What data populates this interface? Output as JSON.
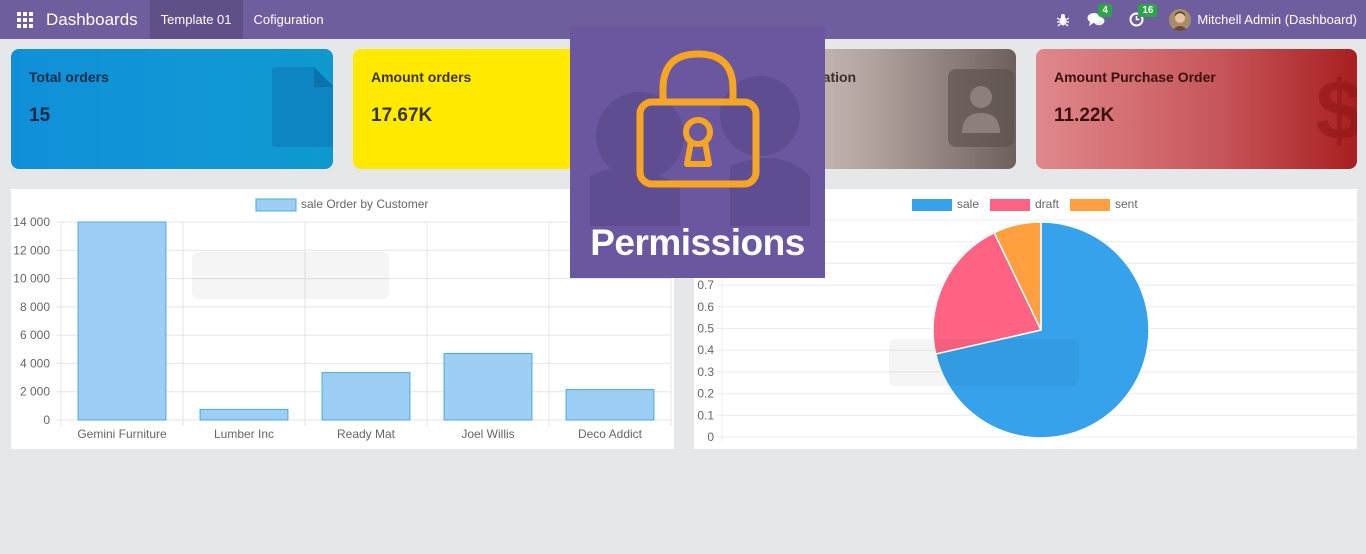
{
  "navbar": {
    "brand": "Dashboards",
    "menu": [
      "Template 01",
      "Cofiguration"
    ],
    "messages_count": "4",
    "activities_count": "16",
    "user": "Mitchell Admin (Dashboard)"
  },
  "cards": [
    {
      "title": "Total orders",
      "value": "15"
    },
    {
      "title": "Amount orders",
      "value": "17.67K"
    },
    {
      "title": "tation",
      "value": ""
    },
    {
      "title": "Amount Purchase Order",
      "value": "11.22K"
    }
  ],
  "overlay": {
    "text": "Permissions"
  },
  "chart_data": [
    {
      "type": "bar",
      "title": "",
      "legend": "sale Order by Customer",
      "categories": [
        "Gemini Furniture",
        "Lumber Inc",
        "Ready Mat",
        "Joel Willis",
        "Deco Addict"
      ],
      "series": [
        {
          "name": "sale Order by Customer",
          "values": [
            14000,
            750,
            3350,
            4700,
            2150
          ]
        }
      ],
      "ylim": [
        0,
        14000
      ],
      "yticks": [
        "14 000",
        "12 000",
        "10 000",
        "8 000",
        "6 000",
        "4 000",
        "2 000",
        "0"
      ],
      "grid": true,
      "legend_position": "top",
      "colors": {
        "fill": "#9ccff3",
        "stroke": "#47a8e8"
      }
    },
    {
      "type": "pie",
      "title": "",
      "legend": [
        "sale",
        "draft",
        "sent"
      ],
      "values": [
        0.7143,
        0.2143,
        0.0714
      ],
      "colors": [
        "#36a2eb",
        "#ff6384",
        "#ff9f40"
      ],
      "yticks": [
        "0.7",
        "0.6",
        "0.5",
        "0.4",
        "0.3",
        "0.2",
        "0.1",
        "0"
      ],
      "legend_position": "top"
    }
  ]
}
